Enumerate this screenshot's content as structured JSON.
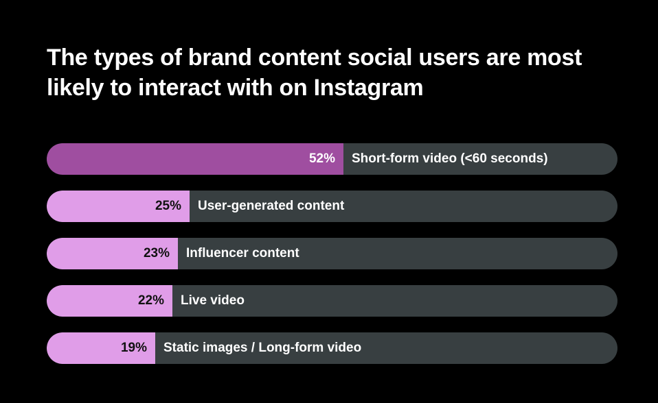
{
  "title": "The types of brand content social users are most likely to interact with on Instagram",
  "colors": {
    "background": "#000000",
    "track": "#383f41",
    "highlight_fill": "#9f4ea0",
    "normal_fill": "#e09de8",
    "highlight_pct_text": "#ffffff",
    "normal_pct_text": "#111111"
  },
  "chart_data": {
    "type": "bar",
    "orientation": "horizontal",
    "title": "The types of brand content social users are most likely to interact with on Instagram",
    "categories": [
      "Short-form video (<60 seconds)",
      "User-generated content",
      "Influencer content",
      "Live video",
      "Static images / Long-form video"
    ],
    "values": [
      52,
      25,
      23,
      22,
      19
    ],
    "unit": "%",
    "xlabel": "",
    "ylabel": "",
    "xlim": [
      0,
      100
    ],
    "grid": false,
    "legend": null
  },
  "bars": [
    {
      "label": "Short-form video (<60 seconds)",
      "value": 52,
      "pct_text": "52%",
      "highlight": true
    },
    {
      "label": "User-generated content",
      "value": 25,
      "pct_text": "25%",
      "highlight": false
    },
    {
      "label": "Influencer content",
      "value": 23,
      "pct_text": "23%",
      "highlight": false
    },
    {
      "label": "Live video",
      "value": 22,
      "pct_text": "22%",
      "highlight": false
    },
    {
      "label": "Static images / Long-form video",
      "value": 19,
      "pct_text": "19%",
      "highlight": false
    }
  ]
}
